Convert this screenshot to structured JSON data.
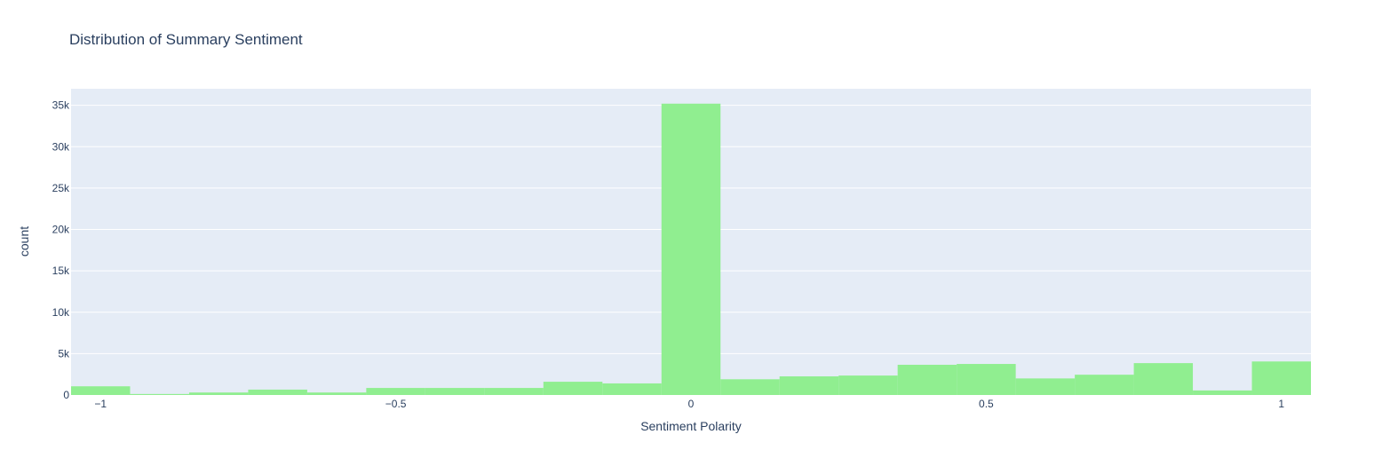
{
  "chart_data": {
    "type": "bar",
    "title": "Distribution of Summary Sentiment",
    "xlabel": "Sentiment Polarity",
    "ylabel": "count",
    "bar_color": "#90ee90",
    "plot_background": "#e5ecf6",
    "grid": true,
    "xlim": [
      -1.05,
      1.05
    ],
    "ylim": [
      0,
      37000
    ],
    "xticks": [
      {
        "value": -1,
        "label": "−1"
      },
      {
        "value": -0.5,
        "label": "−0.5"
      },
      {
        "value": 0,
        "label": "0"
      },
      {
        "value": 0.5,
        "label": "0.5"
      },
      {
        "value": 1,
        "label": "1"
      }
    ],
    "yticks": [
      {
        "value": 0,
        "label": "0"
      },
      {
        "value": 5000,
        "label": "5k"
      },
      {
        "value": 10000,
        "label": "10k"
      },
      {
        "value": 15000,
        "label": "15k"
      },
      {
        "value": 20000,
        "label": "20k"
      },
      {
        "value": 25000,
        "label": "25k"
      },
      {
        "value": 30000,
        "label": "30k"
      },
      {
        "value": 35000,
        "label": "35k"
      }
    ],
    "bins": [
      {
        "x0": -1.05,
        "x1": -0.95,
        "count": 1050
      },
      {
        "x0": -0.95,
        "x1": -0.85,
        "count": 120
      },
      {
        "x0": -0.85,
        "x1": -0.75,
        "count": 300
      },
      {
        "x0": -0.75,
        "x1": -0.65,
        "count": 650
      },
      {
        "x0": -0.65,
        "x1": -0.55,
        "count": 300
      },
      {
        "x0": -0.55,
        "x1": -0.45,
        "count": 850
      },
      {
        "x0": -0.45,
        "x1": -0.35,
        "count": 850
      },
      {
        "x0": -0.35,
        "x1": -0.25,
        "count": 850
      },
      {
        "x0": -0.25,
        "x1": -0.15,
        "count": 1600
      },
      {
        "x0": -0.15,
        "x1": -0.05,
        "count": 1400
      },
      {
        "x0": -0.05,
        "x1": 0.05,
        "count": 35200
      },
      {
        "x0": 0.05,
        "x1": 0.15,
        "count": 1900
      },
      {
        "x0": 0.15,
        "x1": 0.25,
        "count": 2250
      },
      {
        "x0": 0.25,
        "x1": 0.35,
        "count": 2350
      },
      {
        "x0": 0.35,
        "x1": 0.45,
        "count": 3650
      },
      {
        "x0": 0.45,
        "x1": 0.55,
        "count": 3750
      },
      {
        "x0": 0.55,
        "x1": 0.65,
        "count": 2000
      },
      {
        "x0": 0.65,
        "x1": 0.75,
        "count": 2450
      },
      {
        "x0": 0.75,
        "x1": 0.85,
        "count": 3850
      },
      {
        "x0": 0.85,
        "x1": 0.95,
        "count": 550
      },
      {
        "x0": 0.95,
        "x1": 1.05,
        "count": 4050
      }
    ]
  }
}
